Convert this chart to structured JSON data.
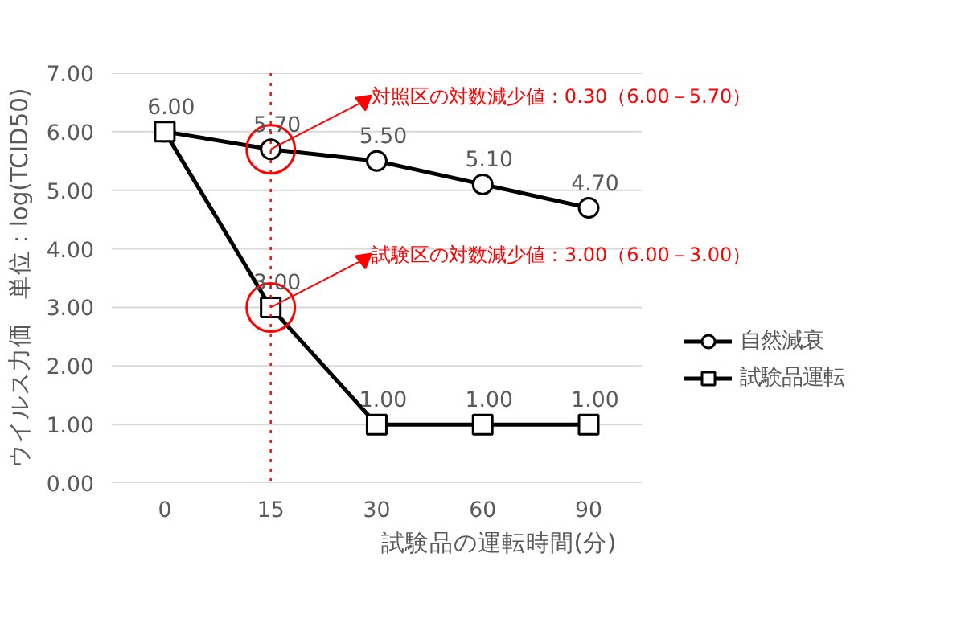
{
  "chart_data": {
    "type": "line",
    "xlabel": "試験品の運転時間(分)",
    "ylabel": "ウイルス力価　単位：log(TCID50)",
    "categories": [
      "0",
      "15",
      "30",
      "60",
      "90"
    ],
    "series": [
      {
        "name": "自然減衰",
        "color": "#000000",
        "marker": "circle",
        "values": [
          6.0,
          5.7,
          5.5,
          5.1,
          4.7
        ],
        "value_labels": [
          "6.00",
          "5.70",
          "5.50",
          "5.10",
          "4.70"
        ]
      },
      {
        "name": "試験品運転",
        "color": "#000000",
        "marker": "square",
        "values": [
          6.0,
          3.0,
          1.0,
          1.0,
          1.0
        ],
        "value_labels": [
          null,
          "3.00",
          "1.00",
          "1.00",
          "1.00"
        ]
      }
    ],
    "ylim": [
      0,
      7
    ],
    "yticks": [
      {
        "value": 0,
        "label": "0.00"
      },
      {
        "value": 1,
        "label": "1.00"
      },
      {
        "value": 2,
        "label": "2.00"
      },
      {
        "value": 3,
        "label": "3.00"
      },
      {
        "value": 4,
        "label": "4.00"
      },
      {
        "value": 5,
        "label": "5.00"
      },
      {
        "value": 6,
        "label": "6.00"
      },
      {
        "value": 7,
        "label": "7.00"
      }
    ],
    "grid": "y",
    "legend": "right",
    "ref_lines": [
      {
        "axis": "x",
        "value": "15",
        "color": "#ff0000",
        "line_style": "dotted"
      }
    ],
    "annotations": [
      {
        "text": "対照区の対数減少値：0.30（6.00－5.70）",
        "x": "15",
        "y": 5.7
      },
      {
        "text": "試験区の対数減少値：3.00（6.00－3.00）",
        "x": "15",
        "y": 3.0
      }
    ]
  }
}
